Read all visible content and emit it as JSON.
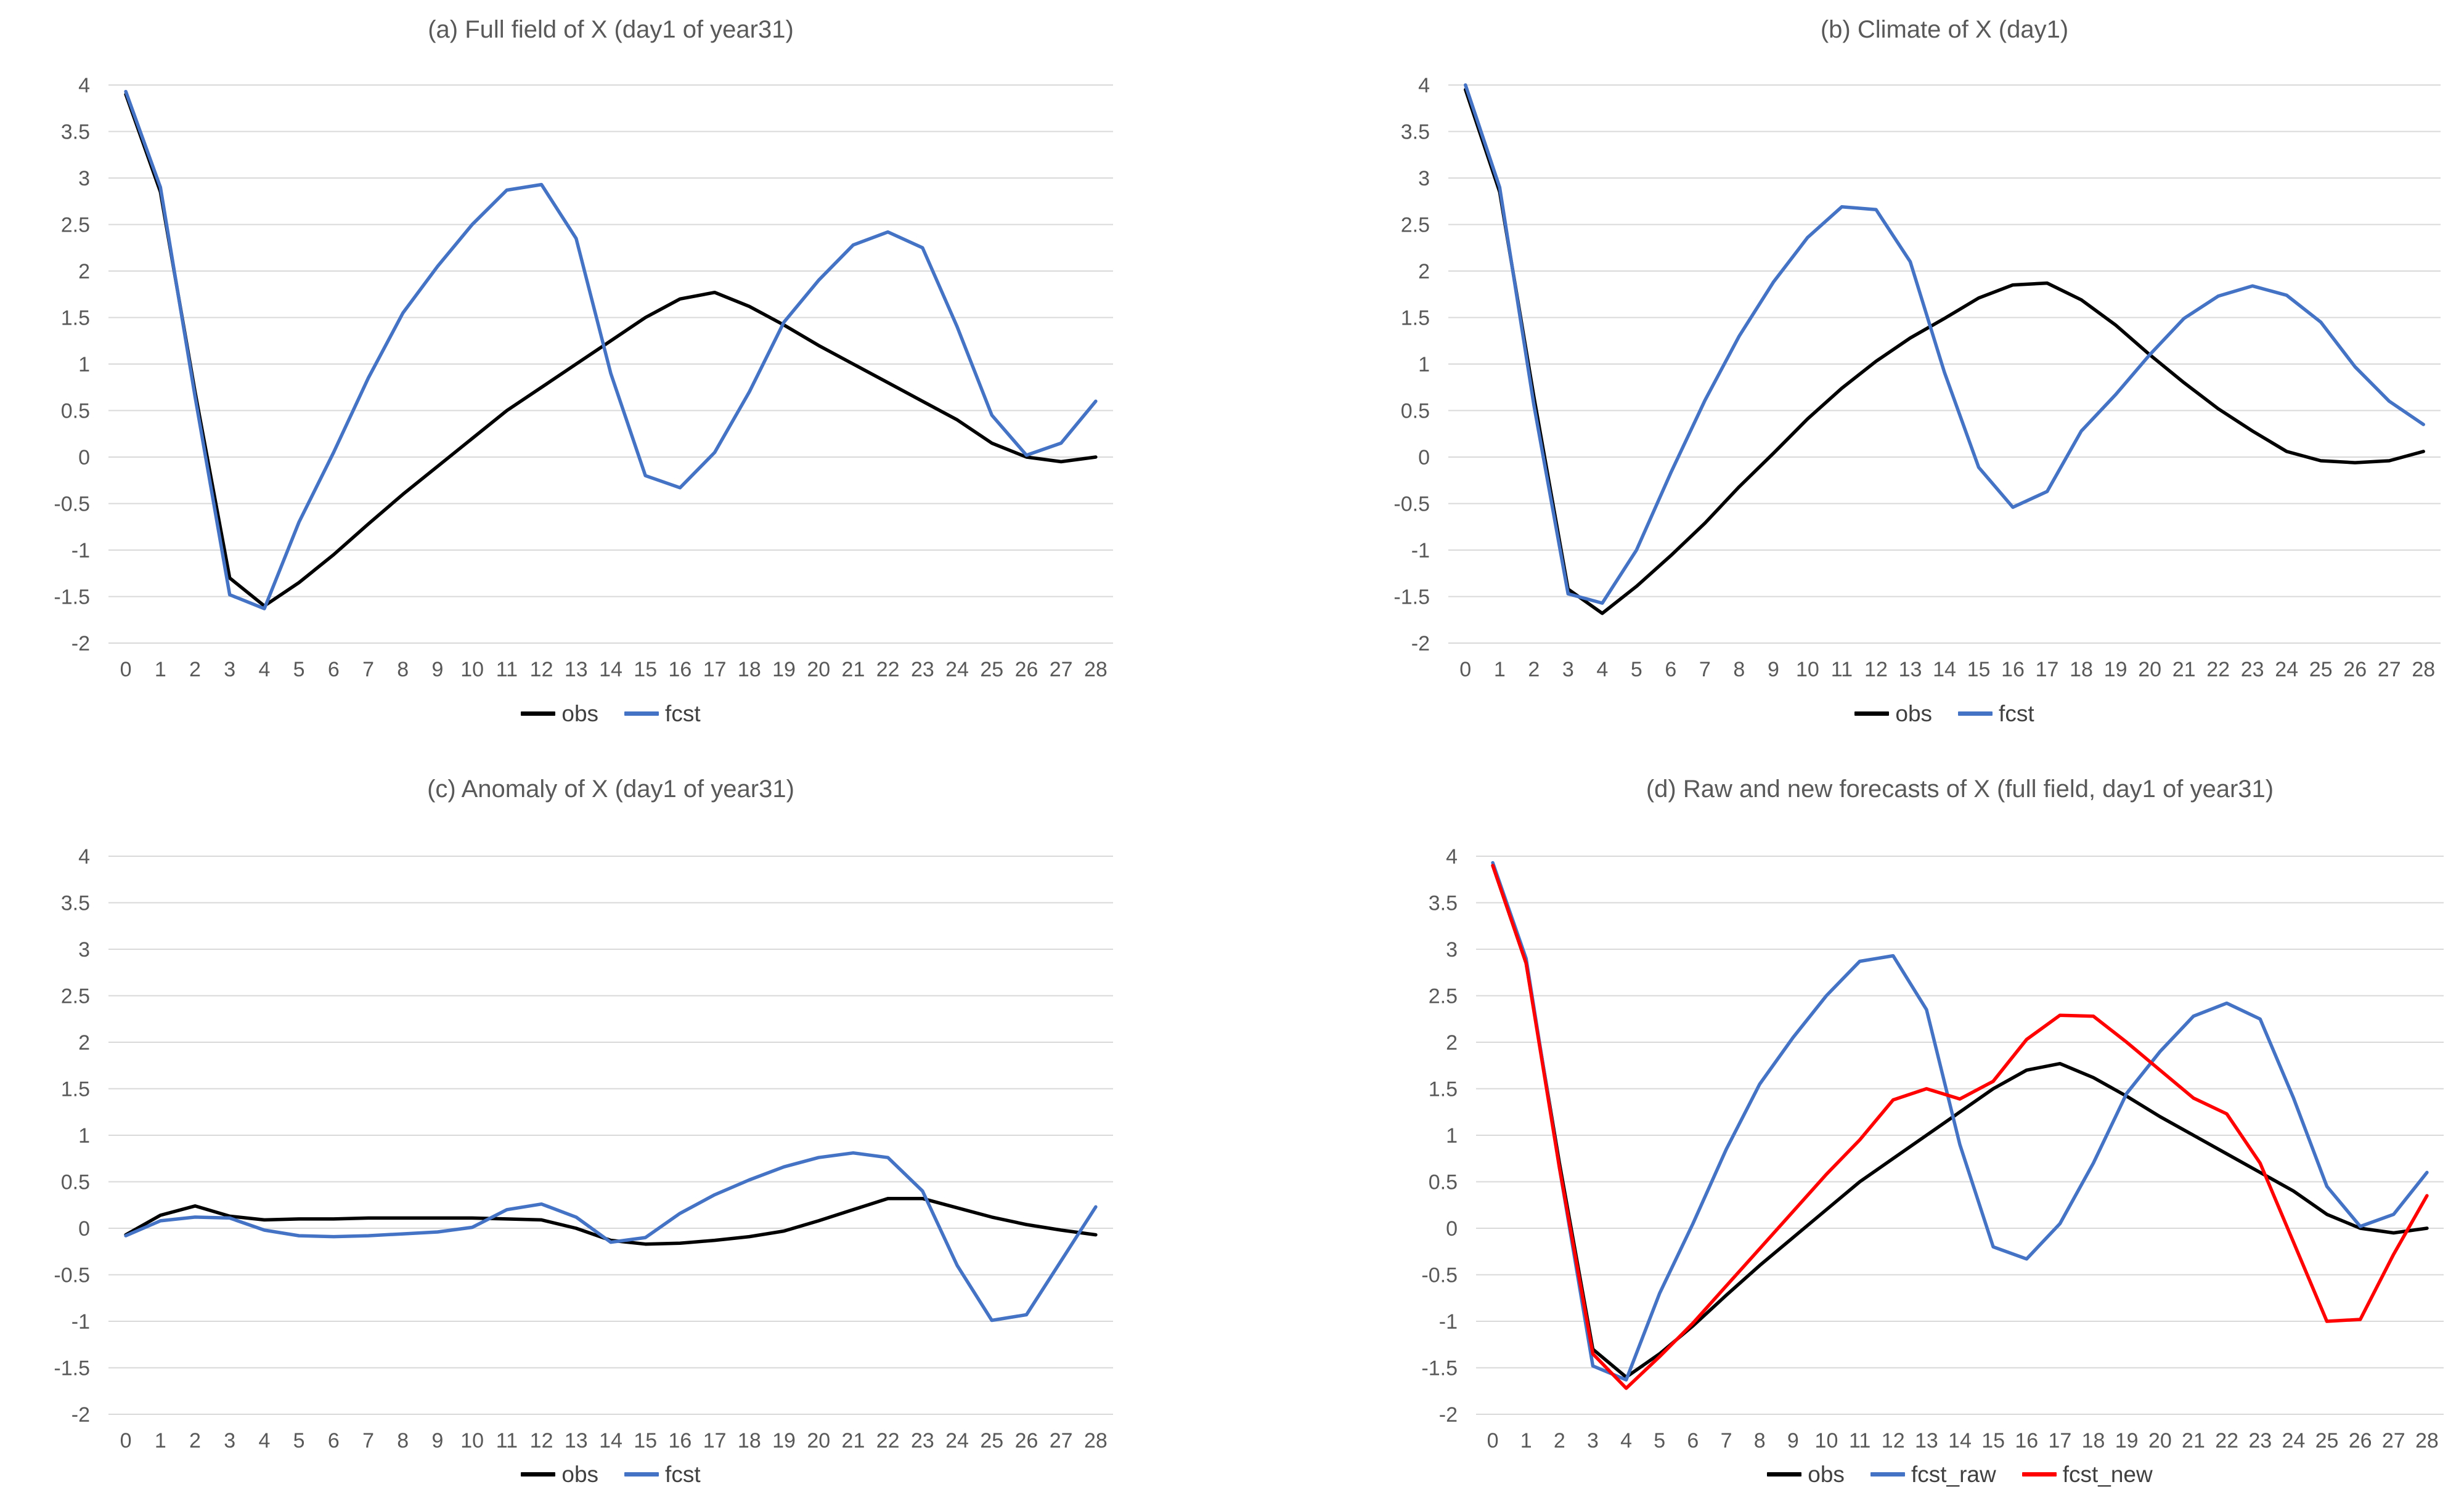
{
  "figure": {
    "background": "#ffffff"
  },
  "style": {
    "grid_color": "#d9d9d9",
    "tick_label_color": "#595959",
    "title_color": "#595959",
    "legend_text_color": "#404040",
    "obs_color": "#000000",
    "fcst_color": "#4472c4",
    "fcst_new_color": "#ff0000"
  },
  "axis": {
    "x_tick_labels": [
      "0",
      "1",
      "2",
      "3",
      "4",
      "5",
      "6",
      "7",
      "8",
      "9",
      "10",
      "11",
      "12",
      "13",
      "14",
      "15",
      "16",
      "17",
      "18",
      "19",
      "20",
      "21",
      "22",
      "23",
      "24",
      "25",
      "26",
      "27",
      "28"
    ],
    "y_tick_labels": [
      "4",
      "3.5",
      "3",
      "2.5",
      "2",
      "1.5",
      "1",
      "0.5",
      "0",
      "-0.5",
      "-1",
      "-1.5",
      "-2"
    ],
    "ylim": [
      -2,
      4
    ],
    "ytick_step": 0.5,
    "grid": true,
    "legend_position": "bottom"
  },
  "chart_data": [
    {
      "id": "a",
      "type": "line",
      "title": "(a) Full field of X (day1 of year31)",
      "xlabel": "",
      "ylabel": "",
      "ylim": [
        -2,
        4
      ],
      "x": [
        0,
        1,
        2,
        3,
        4,
        5,
        6,
        7,
        8,
        9,
        10,
        11,
        12,
        13,
        14,
        15,
        16,
        17,
        18,
        19,
        20,
        21,
        22,
        23,
        24,
        25,
        26,
        27,
        28
      ],
      "series": [
        {
          "name": "obs",
          "color": "#000000",
          "values": [
            3.9,
            2.85,
            0.7,
            -1.3,
            -1.6,
            -1.35,
            -1.05,
            -0.72,
            -0.4,
            -0.1,
            0.2,
            0.5,
            0.75,
            1.0,
            1.25,
            1.5,
            1.7,
            1.77,
            1.62,
            1.42,
            1.2,
            1.0,
            0.8,
            0.6,
            0.4,
            0.15,
            0.0,
            -0.05,
            0.0
          ]
        },
        {
          "name": "fcst",
          "color": "#4472c4",
          "values": [
            3.93,
            2.9,
            0.65,
            -1.48,
            -1.63,
            -0.7,
            0.05,
            0.85,
            1.55,
            2.05,
            2.5,
            2.87,
            2.93,
            2.35,
            0.9,
            -0.2,
            -0.33,
            0.05,
            0.7,
            1.45,
            1.9,
            2.28,
            2.42,
            2.25,
            1.4,
            0.45,
            0.02,
            0.15,
            0.6
          ]
        }
      ]
    },
    {
      "id": "b",
      "type": "line",
      "title": "(b) Climate of X (day1)",
      "xlabel": "",
      "ylabel": "",
      "ylim": [
        -2,
        4
      ],
      "x": [
        0,
        1,
        2,
        3,
        4,
        5,
        6,
        7,
        8,
        9,
        10,
        11,
        12,
        13,
        14,
        15,
        16,
        17,
        18,
        19,
        20,
        21,
        22,
        23,
        24,
        25,
        26,
        27,
        28
      ],
      "series": [
        {
          "name": "obs",
          "color": "#000000",
          "values": [
            3.95,
            2.85,
            0.65,
            -1.42,
            -1.68,
            -1.39,
            -1.06,
            -0.71,
            -0.32,
            0.04,
            0.41,
            0.74,
            1.03,
            1.28,
            1.49,
            1.71,
            1.85,
            1.87,
            1.69,
            1.42,
            1.1,
            0.8,
            0.52,
            0.28,
            0.06,
            -0.04,
            -0.06,
            -0.04,
            0.06
          ]
        },
        {
          "name": "fcst",
          "color": "#4472c4",
          "values": [
            4.0,
            2.9,
            0.56,
            -1.47,
            -1.57,
            -1.0,
            -0.17,
            0.61,
            1.3,
            1.88,
            2.36,
            2.69,
            2.66,
            2.1,
            0.91,
            -0.11,
            -0.54,
            -0.37,
            0.28,
            0.67,
            1.1,
            1.49,
            1.73,
            1.84,
            1.74,
            1.45,
            0.97,
            0.6,
            0.35
          ]
        }
      ]
    },
    {
      "id": "c",
      "type": "line",
      "title": "(c) Anomaly of X (day1 of year31)",
      "xlabel": "",
      "ylabel": "",
      "ylim": [
        -2,
        4
      ],
      "x": [
        0,
        1,
        2,
        3,
        4,
        5,
        6,
        7,
        8,
        9,
        10,
        11,
        12,
        13,
        14,
        15,
        16,
        17,
        18,
        19,
        20,
        21,
        22,
        23,
        24,
        25,
        26,
        27,
        28
      ],
      "series": [
        {
          "name": "obs",
          "color": "#000000",
          "values": [
            -0.07,
            0.14,
            0.24,
            0.13,
            0.09,
            0.1,
            0.1,
            0.11,
            0.11,
            0.11,
            0.11,
            0.1,
            0.09,
            0.0,
            -0.13,
            -0.17,
            -0.16,
            -0.13,
            -0.09,
            -0.03,
            0.08,
            0.2,
            0.32,
            0.32,
            0.22,
            0.12,
            0.04,
            -0.02,
            -0.07
          ]
        },
        {
          "name": "fcst",
          "color": "#4472c4",
          "values": [
            -0.08,
            0.08,
            0.12,
            0.11,
            -0.02,
            -0.08,
            -0.09,
            -0.08,
            -0.06,
            -0.04,
            0.01,
            0.2,
            0.26,
            0.12,
            -0.15,
            -0.1,
            0.16,
            0.36,
            0.52,
            0.66,
            0.76,
            0.81,
            0.76,
            0.4,
            -0.4,
            -0.99,
            -0.93,
            -0.35,
            0.23
          ]
        }
      ]
    },
    {
      "id": "d",
      "type": "line",
      "title": "(d) Raw and new forecasts of X (full field, day1 of year31)",
      "xlabel": "",
      "ylabel": "",
      "ylim": [
        -2,
        4
      ],
      "x": [
        0,
        1,
        2,
        3,
        4,
        5,
        6,
        7,
        8,
        9,
        10,
        11,
        12,
        13,
        14,
        15,
        16,
        17,
        18,
        19,
        20,
        21,
        22,
        23,
        24,
        25,
        26,
        27,
        28
      ],
      "series": [
        {
          "name": "obs",
          "color": "#000000",
          "values": [
            3.9,
            2.85,
            0.7,
            -1.3,
            -1.6,
            -1.35,
            -1.05,
            -0.72,
            -0.4,
            -0.1,
            0.2,
            0.5,
            0.75,
            1.0,
            1.25,
            1.5,
            1.7,
            1.77,
            1.62,
            1.42,
            1.2,
            1.0,
            0.8,
            0.6,
            0.4,
            0.15,
            0.0,
            -0.05,
            0.0
          ]
        },
        {
          "name": "fcst_raw",
          "color": "#4472c4",
          "values": [
            3.93,
            2.9,
            0.65,
            -1.48,
            -1.63,
            -0.7,
            0.05,
            0.85,
            1.55,
            2.05,
            2.5,
            2.87,
            2.93,
            2.35,
            0.9,
            -0.2,
            -0.33,
            0.05,
            0.7,
            1.45,
            1.9,
            2.28,
            2.42,
            2.25,
            1.4,
            0.45,
            0.02,
            0.15,
            0.6
          ]
        },
        {
          "name": "fcst_new",
          "color": "#ff0000",
          "values": [
            3.9,
            2.85,
            0.65,
            -1.35,
            -1.72,
            -1.38,
            -1.02,
            -0.62,
            -0.22,
            0.18,
            0.58,
            0.95,
            1.38,
            1.5,
            1.39,
            1.58,
            2.03,
            2.29,
            2.28,
            2.0,
            1.7,
            1.4,
            1.23,
            0.7,
            -0.15,
            -1.0,
            -0.98,
            -0.28,
            0.35
          ]
        }
      ]
    }
  ]
}
